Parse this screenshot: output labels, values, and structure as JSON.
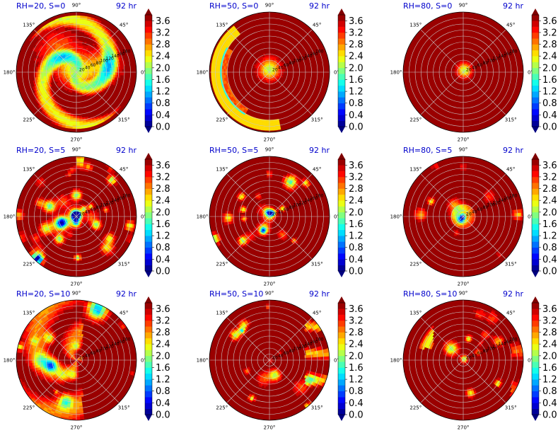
{
  "chart_data": {
    "type": "heatmap",
    "subtype": "polar-contourf-grid",
    "grid": {
      "rows": 3,
      "cols": 3
    },
    "angle_tick_labels": [
      "0°",
      "45°",
      "90°",
      "135°",
      "180°",
      "225°",
      "270°",
      "315°"
    ],
    "radial_tick_labels": [
      "20",
      "40",
      "60",
      "80",
      "100",
      "120",
      "140",
      "160",
      "180"
    ],
    "colorbar": {
      "tick_labels": [
        "0.0",
        "0.4",
        "0.8",
        "1.2",
        "1.6",
        "2.0",
        "2.4",
        "2.8",
        "3.2",
        "3.6"
      ],
      "range": [
        0.0,
        3.8
      ],
      "extend": "both",
      "levels": 19,
      "colormap_stops": [
        "#00007f",
        "#0000ff",
        "#007fff",
        "#00ffff",
        "#7fff7f",
        "#ffff00",
        "#ff7f00",
        "#ff0000",
        "#7f0000"
      ]
    },
    "panels": [
      {
        "title": "RH=20, S=0",
        "time": "92 hr",
        "show_radial_labels": true,
        "pattern": "broad-spiral",
        "seed": 11
      },
      {
        "title": "RH=50, S=0",
        "time": "92 hr",
        "show_radial_labels": true,
        "pattern": "core-arc",
        "seed": 23
      },
      {
        "title": "RH=80, S=0",
        "time": "92 hr",
        "show_radial_labels": true,
        "pattern": "small-core",
        "seed": 37
      },
      {
        "title": "RH=20, S=5",
        "time": "92 hr",
        "show_radial_labels": true,
        "pattern": "scattered-wide",
        "seed": 41
      },
      {
        "title": "RH=50, S=5",
        "time": "92 hr",
        "show_radial_labels": true,
        "pattern": "scattered-sparse",
        "seed": 53
      },
      {
        "title": "RH=80, S=5",
        "time": "92 hr",
        "show_radial_labels": true,
        "pattern": "core-ring",
        "seed": 67
      },
      {
        "title": "RH=20, S=10",
        "time": "92 hr",
        "show_radial_labels": true,
        "pattern": "broad-west",
        "seed": 71
      },
      {
        "title": "RH=50, S=10",
        "time": "92 hr",
        "show_radial_labels": true,
        "pattern": "east-edge",
        "seed": 83
      },
      {
        "title": "RH=80, S=10",
        "time": "92 hr",
        "show_radial_labels": true,
        "pattern": "northwest-edge",
        "seed": 97
      }
    ]
  }
}
